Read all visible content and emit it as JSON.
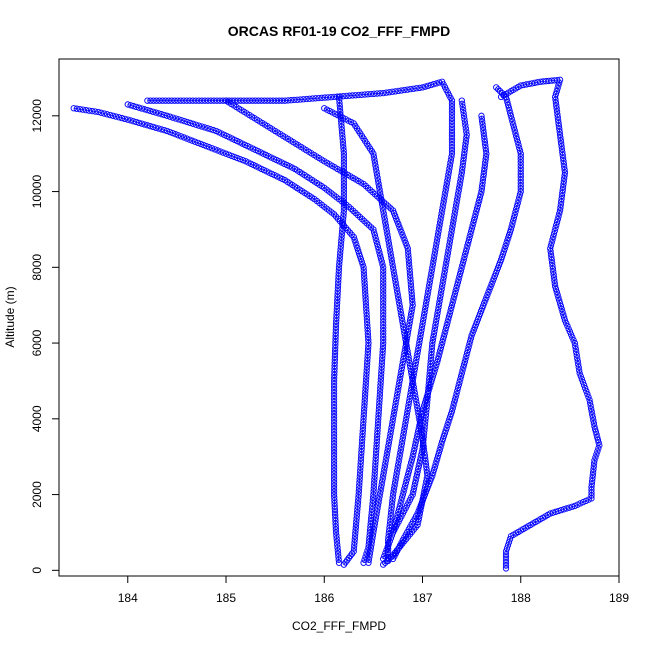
{
  "chart_data": {
    "type": "scatter",
    "title": "ORCAS RF01-19 CO2_FFF_FMPD",
    "xlabel": "CO2_FFF_FMPD",
    "ylabel": "Altitude (m)",
    "xlim": [
      183.3,
      189.0
    ],
    "ylim": [
      -150,
      13500
    ],
    "x_ticks": [
      184,
      185,
      186,
      187,
      188,
      189
    ],
    "y_ticks": [
      0,
      2000,
      4000,
      6000,
      8000,
      10000,
      12000
    ],
    "marker": "open-circle",
    "color": "#0000ff",
    "grid": false,
    "legend": "none",
    "series": [
      {
        "values": [
          [
            183.45,
            12200
          ],
          [
            183.7,
            12100
          ],
          [
            184.0,
            11900
          ],
          [
            184.4,
            11600
          ],
          [
            184.8,
            11200
          ],
          [
            185.2,
            10800
          ],
          [
            185.6,
            10300
          ],
          [
            185.9,
            9800
          ],
          [
            186.1,
            9400
          ],
          [
            186.3,
            8800
          ],
          [
            186.4,
            8000
          ],
          [
            186.45,
            6000
          ],
          [
            186.4,
            4000
          ],
          [
            186.35,
            2000
          ],
          [
            186.3,
            500
          ],
          [
            186.2,
            150
          ]
        ]
      },
      {
        "values": [
          [
            184.0,
            12300
          ],
          [
            184.4,
            12000
          ],
          [
            184.9,
            11600
          ],
          [
            185.3,
            11100
          ],
          [
            185.7,
            10600
          ],
          [
            186.0,
            10100
          ],
          [
            186.25,
            9600
          ],
          [
            186.5,
            9000
          ],
          [
            186.6,
            8000
          ],
          [
            186.6,
            6000
          ],
          [
            186.55,
            4000
          ],
          [
            186.5,
            2000
          ],
          [
            186.45,
            600
          ],
          [
            186.4,
            200
          ]
        ]
      },
      {
        "values": [
          [
            184.2,
            12400
          ],
          [
            185.0,
            12400
          ],
          [
            185.6,
            12400
          ],
          [
            186.1,
            12500
          ],
          [
            186.6,
            12600
          ],
          [
            187.0,
            12750
          ],
          [
            187.2,
            12900
          ],
          [
            187.3,
            12400
          ],
          [
            187.3,
            11000
          ],
          [
            187.2,
            9500
          ],
          [
            187.1,
            8000
          ],
          [
            187.0,
            6500
          ],
          [
            186.9,
            5000
          ],
          [
            186.8,
            3500
          ],
          [
            186.7,
            2000
          ],
          [
            186.65,
            800
          ],
          [
            186.65,
            250
          ]
        ]
      },
      {
        "values": [
          [
            186.0,
            12200
          ],
          [
            186.3,
            11800
          ],
          [
            186.5,
            11000
          ],
          [
            186.6,
            9500
          ],
          [
            186.7,
            8000
          ],
          [
            186.8,
            6500
          ],
          [
            186.9,
            5000
          ],
          [
            187.0,
            3500
          ],
          [
            187.05,
            2500
          ],
          [
            186.95,
            1200
          ],
          [
            186.7,
            400
          ],
          [
            186.6,
            150
          ]
        ]
      },
      {
        "values": [
          [
            187.4,
            12400
          ],
          [
            187.45,
            11500
          ],
          [
            187.4,
            10500
          ],
          [
            187.3,
            9000
          ],
          [
            187.2,
            7500
          ],
          [
            187.1,
            6000
          ],
          [
            187.05,
            4500
          ],
          [
            187.0,
            3200
          ],
          [
            186.9,
            2000
          ],
          [
            186.7,
            1000
          ],
          [
            186.6,
            300
          ]
        ]
      },
      {
        "values": [
          [
            187.6,
            12000
          ],
          [
            187.65,
            11000
          ],
          [
            187.6,
            10000
          ],
          [
            187.45,
            8500
          ],
          [
            187.3,
            7000
          ],
          [
            187.15,
            5500
          ],
          [
            187.0,
            4200
          ],
          [
            186.9,
            3000
          ],
          [
            186.8,
            2000
          ],
          [
            186.7,
            1000
          ]
        ]
      },
      {
        "values": [
          [
            187.8,
            12500
          ],
          [
            188.0,
            12800
          ],
          [
            188.2,
            12900
          ],
          [
            188.4,
            12950
          ],
          [
            188.35,
            12500
          ],
          [
            188.4,
            11500
          ],
          [
            188.45,
            10500
          ],
          [
            188.4,
            9500
          ],
          [
            188.3,
            8500
          ],
          [
            188.35,
            7500
          ],
          [
            188.45,
            6600
          ],
          [
            188.55,
            6000
          ],
          [
            188.6,
            5200
          ],
          [
            188.7,
            4500
          ],
          [
            188.75,
            3800
          ],
          [
            188.8,
            3300
          ],
          [
            188.75,
            2900
          ],
          [
            188.72,
            2200
          ],
          [
            188.72,
            1900
          ],
          [
            188.55,
            1700
          ],
          [
            188.3,
            1500
          ],
          [
            188.1,
            1200
          ],
          [
            187.9,
            900
          ],
          [
            187.85,
            500
          ],
          [
            187.85,
            50
          ]
        ]
      },
      {
        "values": [
          [
            187.75,
            12750
          ],
          [
            187.85,
            12500
          ],
          [
            187.9,
            12000
          ],
          [
            188.0,
            11000
          ],
          [
            188.0,
            10000
          ],
          [
            187.9,
            9000
          ],
          [
            187.8,
            8200
          ],
          [
            187.65,
            7200
          ],
          [
            187.5,
            6200
          ],
          [
            187.4,
            5200
          ],
          [
            187.3,
            4200
          ],
          [
            187.2,
            3400
          ],
          [
            187.1,
            2500
          ],
          [
            186.95,
            1500
          ],
          [
            186.8,
            800
          ],
          [
            186.7,
            300
          ]
        ]
      },
      {
        "values": [
          [
            186.15,
            12500
          ],
          [
            186.2,
            11000
          ],
          [
            186.2,
            9500
          ],
          [
            186.15,
            8000
          ],
          [
            186.12,
            6500
          ],
          [
            186.1,
            5000
          ],
          [
            186.1,
            3500
          ],
          [
            186.1,
            2000
          ],
          [
            186.12,
            1000
          ],
          [
            186.15,
            200
          ]
        ]
      },
      {
        "values": [
          [
            185.0,
            12400
          ],
          [
            185.5,
            11600
          ],
          [
            186.0,
            10800
          ],
          [
            186.4,
            10200
          ],
          [
            186.7,
            9500
          ],
          [
            186.85,
            8500
          ],
          [
            186.9,
            7000
          ],
          [
            186.8,
            5500
          ],
          [
            186.7,
            4000
          ],
          [
            186.6,
            2500
          ],
          [
            186.5,
            1000
          ],
          [
            186.45,
            200
          ]
        ]
      }
    ]
  }
}
